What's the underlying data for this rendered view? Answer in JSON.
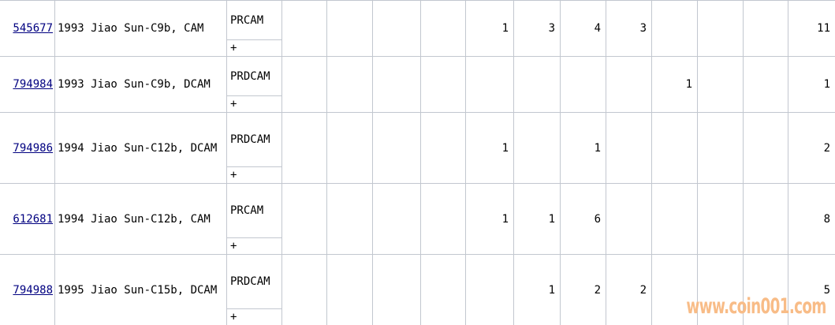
{
  "colors": {
    "link": "#000080",
    "gridline": "#c2c7cf",
    "watermark": "#f8bc87",
    "background": "#ffffff",
    "text": "#000000"
  },
  "watermark": {
    "text": "www.coin001.com"
  },
  "table": {
    "rows": [
      {
        "cert": "545677",
        "description": "1993 Jiao Sun-C9b, CAM",
        "designation": "PRCAM",
        "plus": "+",
        "counts": [
          "",
          "",
          "",
          "",
          "1",
          "3",
          "4",
          "3",
          "",
          "",
          "",
          "11"
        ]
      },
      {
        "cert": "794984",
        "description": "1993 Jiao Sun-C9b, DCAM",
        "designation": "PRDCAM",
        "plus": "+",
        "counts": [
          "",
          "",
          "",
          "",
          "",
          "",
          "",
          "",
          "1",
          "",
          "",
          "1"
        ]
      },
      {
        "cert": "794986",
        "description": "1994 Jiao Sun-C12b, DCAM",
        "designation": "PRDCAM",
        "plus": "+",
        "counts": [
          "",
          "",
          "",
          "",
          "1",
          "",
          "1",
          "",
          "",
          "",
          "",
          "2"
        ]
      },
      {
        "cert": "612681",
        "description": "1994 Jiao Sun-C12b, CAM",
        "designation": "PRCAM",
        "plus": "+",
        "counts": [
          "",
          "",
          "",
          "",
          "1",
          "1",
          "6",
          "",
          "",
          "",
          "",
          "8"
        ]
      },
      {
        "cert": "794988",
        "description": "1995 Jiao Sun-C15b, DCAM",
        "designation": "PRDCAM",
        "plus": "+",
        "counts": [
          "",
          "",
          "",
          "",
          "",
          "1",
          "2",
          "2",
          "",
          "",
          "",
          "5"
        ]
      }
    ]
  }
}
